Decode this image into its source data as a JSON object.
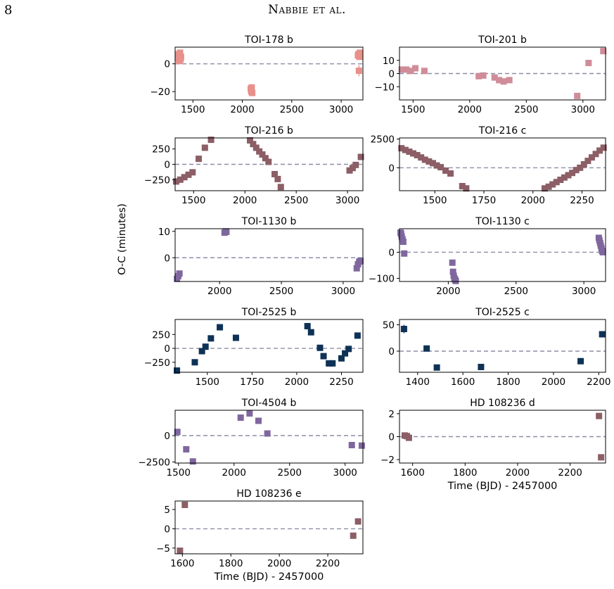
{
  "page": {
    "number": "8",
    "running_head": "Nabbie et al."
  },
  "figure": {
    "shared_ylabel": "O-C (minutes)",
    "colors": {
      "zero_line": "#8e8ea8"
    }
  },
  "chart_data": [
    {
      "type": "scatter",
      "title": "TOI-178 b",
      "color": "#e8908a",
      "xlabel": "",
      "xlim": [
        1320,
        3220
      ],
      "ylim": [
        -26,
        12
      ],
      "xticks": [
        1500,
        2000,
        2500,
        3000
      ],
      "yticks": [
        0,
        -20
      ],
      "x": [
        1350,
        1355,
        1360,
        1365,
        1370,
        1375,
        1380,
        2085,
        2090,
        2095,
        2100,
        3170,
        3175,
        3180,
        3185,
        3190
      ],
      "y": [
        4,
        7,
        2,
        6,
        8,
        3,
        5,
        -18,
        -20,
        -17,
        -21,
        6,
        7,
        -5,
        5,
        8
      ],
      "err": [
        2,
        2,
        2,
        2,
        2,
        2,
        2,
        1.5,
        1.5,
        1.5,
        1.5,
        2,
        2,
        4,
        2,
        2
      ]
    },
    {
      "type": "scatter",
      "title": "TOI-201 b",
      "color": "#d08c98",
      "xlabel": "",
      "xlim": [
        1380,
        3200
      ],
      "ylim": [
        -20,
        20
      ],
      "xticks": [
        1500,
        2000,
        2500,
        3000
      ],
      "yticks": [
        10,
        0,
        -10
      ],
      "x": [
        1400,
        1440,
        1480,
        1520,
        1600,
        2080,
        2120,
        2220,
        2260,
        2300,
        2350,
        2950,
        3050,
        3180
      ],
      "y": [
        3,
        3,
        2,
        4,
        2,
        -2,
        -1.5,
        -3,
        -5,
        -6,
        -5,
        -17,
        8,
        17
      ],
      "err": []
    },
    {
      "type": "scatter",
      "title": "TOI-216 b",
      "color": "#8c5e66",
      "xlabel": "",
      "xlim": [
        1320,
        3150
      ],
      "ylim": [
        -430,
        430
      ],
      "xticks": [
        1500,
        2000,
        2500,
        3000
      ],
      "yticks": [
        250,
        0,
        -250
      ],
      "x": [
        1330,
        1370,
        1410,
        1450,
        1490,
        1550,
        1610,
        1670,
        2050,
        2080,
        2110,
        2140,
        2170,
        2200,
        2230,
        2290,
        2320,
        2350,
        3020,
        3050,
        3080,
        3130
      ],
      "y": [
        -280,
        -250,
        -210,
        -170,
        -130,
        90,
        270,
        400,
        390,
        330,
        270,
        210,
        160,
        100,
        40,
        -160,
        -240,
        -370,
        -100,
        -60,
        -10,
        120
      ],
      "err": []
    },
    {
      "type": "scatter",
      "title": "TOI-216 c",
      "color": "#8c5e66",
      "xlabel": "",
      "xlim": [
        1320,
        2370
      ],
      "ylim": [
        -2000,
        2600
      ],
      "xticks": [
        1500,
        1750,
        2000,
        2250
      ],
      "yticks": [
        2500,
        0
      ],
      "x": [
        1330,
        1350,
        1370,
        1390,
        1410,
        1430,
        1450,
        1470,
        1490,
        1510,
        1530,
        1555,
        1580,
        1640,
        1660,
        2060,
        2080,
        2100,
        2120,
        2140,
        2160,
        2180,
        2200,
        2220,
        2240,
        2260,
        2280,
        2300,
        2320,
        2340,
        2360
      ],
      "y": [
        1700,
        1550,
        1400,
        1250,
        1100,
        900,
        700,
        550,
        400,
        200,
        50,
        -250,
        -500,
        -1600,
        -1800,
        -1800,
        -1650,
        -1450,
        -1250,
        -1050,
        -850,
        -650,
        -450,
        -200,
        0,
        300,
        600,
        900,
        1200,
        1500,
        1750
      ],
      "err": []
    },
    {
      "type": "scatter",
      "title": "TOI-1130 b",
      "color": "#7f679e",
      "xlabel": "",
      "xlim": [
        1640,
        3160
      ],
      "ylim": [
        -9,
        11
      ],
      "xticks": [
        2000,
        2500,
        3000
      ],
      "yticks": [
        10,
        0
      ],
      "x": [
        1655,
        1665,
        1675,
        2040,
        2050,
        2055,
        3110,
        3120,
        3130,
        3140
      ],
      "y": [
        -8,
        -7,
        -6,
        9.5,
        10,
        9.8,
        -4,
        -2.5,
        -1.5,
        -1.2
      ],
      "err": []
    },
    {
      "type": "scatter",
      "title": "TOI-1130 c",
      "color": "#7f679e",
      "xlabel": "",
      "xlim": [
        1640,
        3160
      ],
      "ylim": [
        -112,
        90
      ],
      "xticks": [
        2000,
        2500,
        3000
      ],
      "yticks": [
        0,
        -100
      ],
      "x": [
        1648,
        1652,
        1656,
        1662,
        1668,
        1675,
        2030,
        2035,
        2040,
        2045,
        2050,
        2055,
        3110,
        3115,
        3120,
        3125,
        3130,
        3135,
        3140
      ],
      "y": [
        75,
        70,
        60,
        50,
        40,
        -5,
        -40,
        -75,
        -90,
        -100,
        -105,
        -110,
        55,
        45,
        35,
        25,
        15,
        5,
        0
      ],
      "err": []
    },
    {
      "type": "scatter",
      "title": "TOI-2525 b",
      "color": "#0e3256",
      "xlabel": "",
      "xlim": [
        1320,
        2370
      ],
      "ylim": [
        -430,
        520
      ],
      "xticks": [
        1500,
        1750,
        2000,
        2250
      ],
      "yticks": [
        250,
        0,
        -250
      ],
      "x": [
        1330,
        1430,
        1470,
        1490,
        1520,
        1570,
        1660,
        2060,
        2080,
        2130,
        2150,
        2180,
        2200,
        2250,
        2270,
        2290,
        2340
      ],
      "y": [
        -400,
        -250,
        -50,
        30,
        180,
        380,
        190,
        400,
        290,
        10,
        -140,
        -270,
        -270,
        -180,
        -90,
        -10,
        230
      ],
      "err": []
    },
    {
      "type": "scatter",
      "title": "TOI-2525 c",
      "color": "#0e3256",
      "xlabel": "",
      "xlim": [
        1320,
        2230
      ],
      "ylim": [
        -40,
        60
      ],
      "xticks": [
        1400,
        1600,
        1800,
        2000,
        2200
      ],
      "yticks": [
        50,
        0
      ],
      "x": [
        1340,
        1440,
        1485,
        1680,
        2120,
        2215
      ],
      "y": [
        42,
        5,
        -31,
        -30,
        -19,
        32
      ],
      "err": [
        8,
        3,
        3,
        5,
        3,
        3
      ]
    },
    {
      "type": "scatter",
      "title": "TOI-4504 b",
      "color": "#7f679e",
      "xlabel": "",
      "xlim": [
        1470,
        3160
      ],
      "ylim": [
        -2600,
        2400
      ],
      "xticks": [
        1500,
        2000,
        2500,
        3000
      ],
      "yticks": [
        0,
        -2500
      ],
      "x": [
        1490,
        1570,
        1630,
        2060,
        2140,
        2220,
        2300,
        3060,
        3150
      ],
      "y": [
        350,
        -1300,
        -2450,
        1700,
        2100,
        1400,
        200,
        -900,
        -950
      ],
      "err": []
    },
    {
      "type": "scatter",
      "title": "HD 108236 d",
      "color": "#8c5e66",
      "xlabel": "Time (BJD) - 2457000",
      "xlim": [
        1550,
        2335
      ],
      "ylim": [
        -2.3,
        2.3
      ],
      "xticks": [
        1600,
        1800,
        2000,
        2200
      ],
      "yticks": [
        2,
        0,
        -2
      ],
      "x": [
        1570,
        1578,
        1586,
        2310,
        2318
      ],
      "y": [
        0.1,
        0.05,
        -0.1,
        1.8,
        -1.8
      ],
      "err": []
    },
    {
      "type": "scatter",
      "title": "HD 108236 e",
      "color": "#8c5e66",
      "xlabel": "Time (BJD) - 2457000",
      "xlim": [
        1570,
        2345
      ],
      "ylim": [
        -6.5,
        7.2
      ],
      "xticks": [
        1600,
        1800,
        2000,
        2200
      ],
      "yticks": [
        5,
        0,
        -5
      ],
      "x": [
        1590,
        1610,
        2305,
        2325
      ],
      "y": [
        -5.7,
        6.2,
        -1.8,
        1.9
      ],
      "err": []
    }
  ]
}
